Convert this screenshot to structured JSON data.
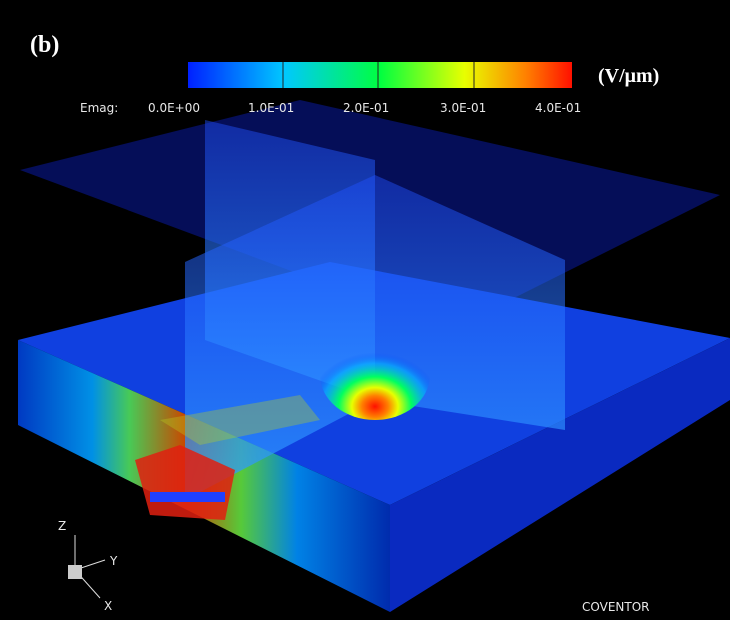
{
  "panel_label": "(b)",
  "colorbar": {
    "title": "Emag:",
    "unit": "(V/μm)",
    "ticks": [
      "0.0E+00",
      "1.0E-01",
      "2.0E-01",
      "3.0E-01",
      "4.0E-01"
    ]
  },
  "axes": {
    "z": "Z",
    "y": "Y",
    "x": "X"
  },
  "brand": "COVENTOR"
}
